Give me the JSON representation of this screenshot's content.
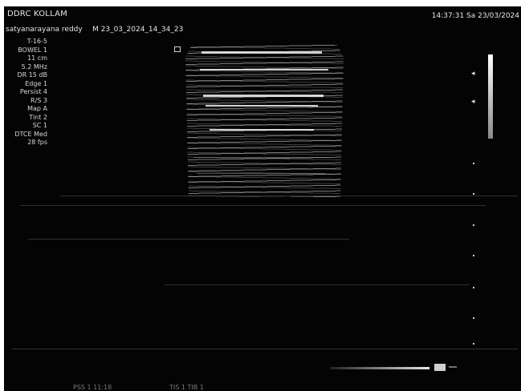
{
  "header": {
    "title": "DDRC KOLLAM",
    "datetime": "14:37:31 Sa 23/03/2024"
  },
  "patient": {
    "name": "satyanarayana reddy",
    "study": "M   23_03_2024_14_34_23"
  },
  "parameters": [
    "T-16-5",
    "BOWEL 1",
    "11 cm",
    "5.2 MHz",
    "DR 15 dB",
    "Edge 1",
    "Persist 4",
    "R/S 3",
    "Map A",
    "Tint 2",
    "SC 1",
    "DTCE Med",
    "28 fps"
  ],
  "focus": {
    "marker1": "◂",
    "marker2": "◂"
  },
  "footer": {
    "left": "PSS 1  11:18",
    "right": "TIS 1  TIB 1"
  },
  "colors": {
    "screen_bg": "#040404",
    "text": "#e6e6e6"
  }
}
